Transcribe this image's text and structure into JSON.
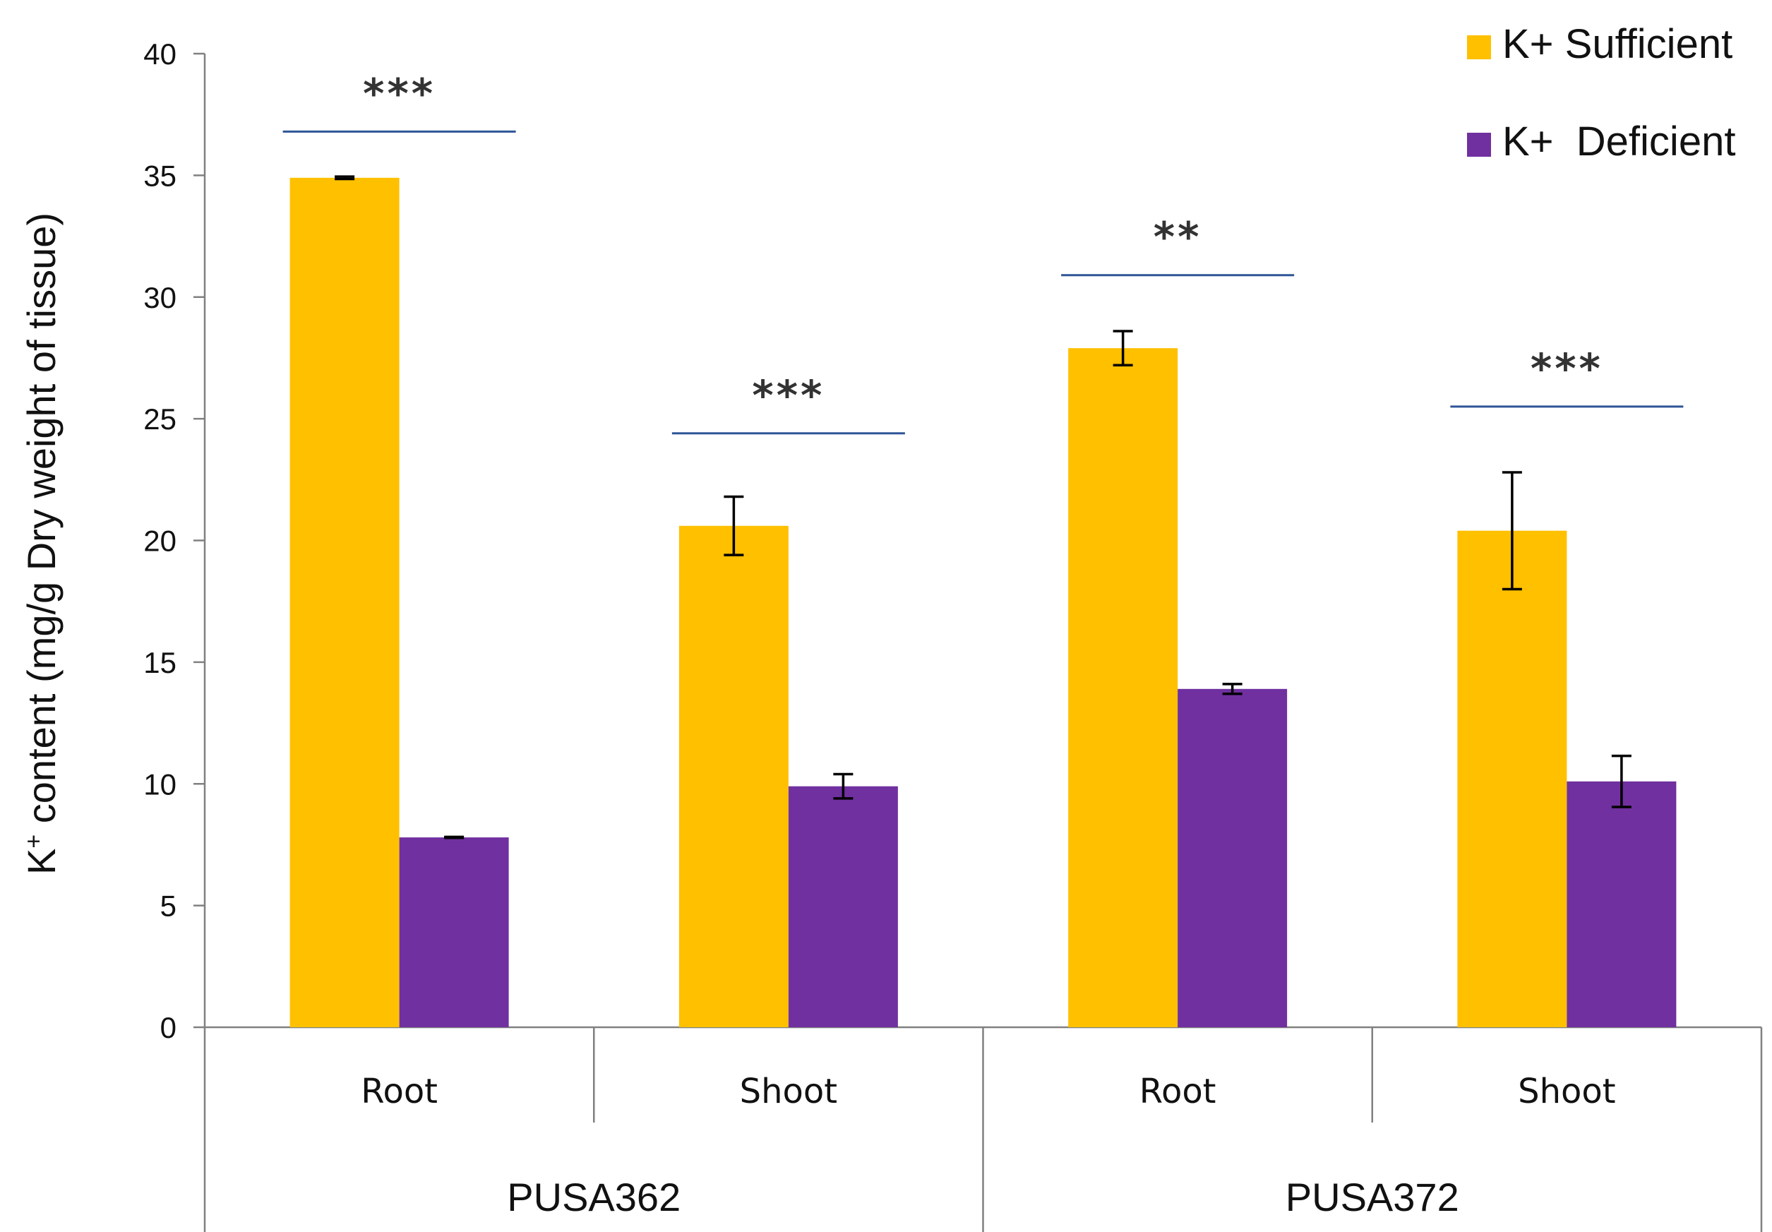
{
  "chart_data": {
    "type": "bar",
    "ylabel_prefix": "K",
    "ylabel_superscript": "+",
    "ylabel_rest": " content (mg/g Dry weight of tissue)",
    "ylim": [
      0,
      40
    ],
    "yticks": [
      0,
      5,
      10,
      15,
      20,
      25,
      30,
      35,
      40
    ],
    "categories": [
      "Root",
      "Shoot",
      "Root",
      "Shoot"
    ],
    "groups": [
      {
        "name": "PUSA362",
        "span": [
          0,
          1
        ]
      },
      {
        "name": "PUSA372",
        "span": [
          2,
          3
        ]
      }
    ],
    "series": [
      {
        "name": "K+ Sufficient",
        "color": "#FFC000",
        "values": [
          34.9,
          20.6,
          27.9,
          20.4
        ],
        "errors": [
          0.05,
          1.2,
          0.7,
          2.4
        ]
      },
      {
        "name": "K+  Deficient",
        "color": "#7030A0",
        "values": [
          7.8,
          9.9,
          13.9,
          10.1
        ],
        "errors": [
          0.02,
          0.5,
          0.2,
          1.05
        ]
      }
    ],
    "significance": [
      {
        "category_index": 0,
        "label": "***",
        "line_y": 36.8
      },
      {
        "category_index": 1,
        "label": "***",
        "line_y": 24.4
      },
      {
        "category_index": 2,
        "label": "**",
        "line_y": 30.9
      },
      {
        "category_index": 3,
        "label": "***",
        "line_y": 25.5
      }
    ],
    "significance_line_color": "#2E5597",
    "legend_position": "top-right",
    "grid": false
  }
}
